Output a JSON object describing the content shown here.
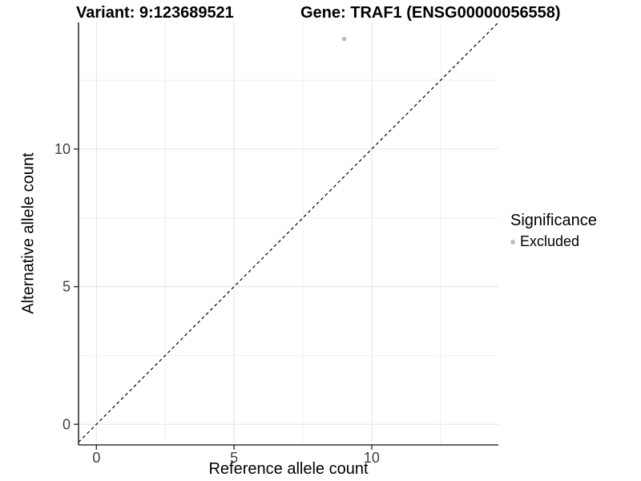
{
  "titles": {
    "variant": "Variant: 9:123689521",
    "gene": "Gene: TRAF1 (ENSG00000056558)"
  },
  "legend": {
    "title": "Significance",
    "items": [
      {
        "label": "Excluded",
        "marker": "circle-icon",
        "color": "#bebebe"
      }
    ]
  },
  "chart_data": {
    "type": "scatter",
    "title": "Variant: 9:123689521 | Gene: TRAF1 (ENSG00000056558)",
    "xlabel": "Reference allele count",
    "ylabel": "Alternative allele count",
    "xlim": [
      -0.65,
      14.6
    ],
    "ylim": [
      -0.75,
      14.6
    ],
    "x_ticks": [
      0,
      5,
      10
    ],
    "y_ticks": [
      0,
      5,
      10
    ],
    "x_minor_ticks": [
      2.5,
      7.5,
      12.5
    ],
    "y_minor_ticks": [
      2.5,
      7.5,
      12.5
    ],
    "grid": "major+minor",
    "legend_position": "right",
    "series": [
      {
        "name": "Excluded",
        "color": "#bebebe",
        "points": [
          {
            "x": 9,
            "y": 14
          }
        ]
      }
    ],
    "reference_line": {
      "equation": "y = x",
      "style": "dashed",
      "color": "#000000"
    }
  },
  "colors": {
    "background": "#ffffff",
    "grid_major": "#e3e3e3",
    "grid_minor": "#efefef",
    "axis_line": "#333333",
    "tick_text": "#404040",
    "point": "#bebebe",
    "dashed_line": "#000000"
  }
}
